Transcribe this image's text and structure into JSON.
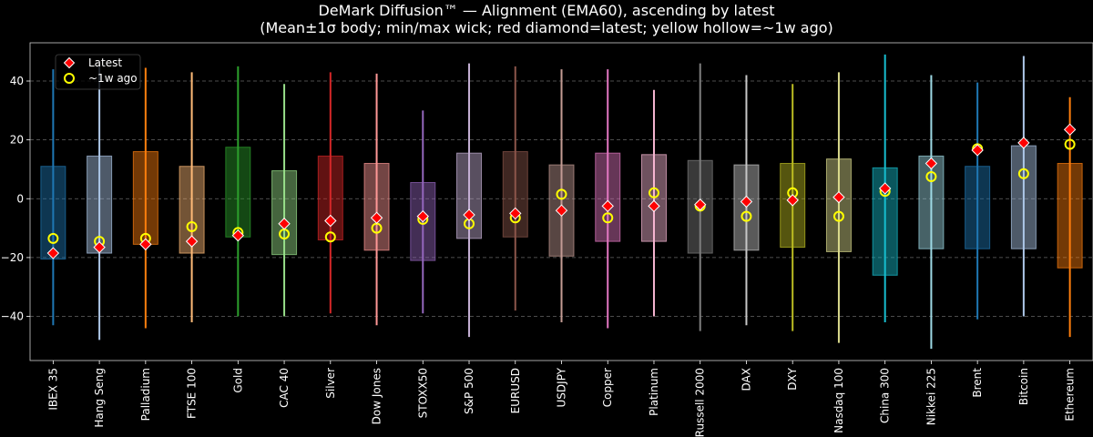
{
  "chart_data": {
    "type": "box",
    "title": "DeMark Diffusion™ — Alignment (EMA60), ascending by latest",
    "subtitle": "(Mean±1σ body; min/max wick; red diamond=latest; yellow hollow=~1w ago)",
    "xlabel": "",
    "ylabel": "",
    "ylim": [
      -55,
      53
    ],
    "yticks": [
      -40,
      -20,
      0,
      20,
      40
    ],
    "grid": "y dashed",
    "legend": {
      "placement": "top-left",
      "entries": [
        {
          "label": "Latest",
          "marker": "red diamond"
        },
        {
          "label": "~1w ago",
          "marker": "yellow hollow circle"
        }
      ]
    },
    "categories": [
      "IBEX 35",
      "Hang Seng",
      "Palladium",
      "FTSE 100",
      "Gold",
      "CAC 40",
      "Silver",
      "Dow Jones",
      "STOXX50",
      "S&P 500",
      "EURUSD",
      "USDJPY",
      "Copper",
      "Platinum",
      "Russell 2000",
      "DAX",
      "DXY",
      "Nasdaq 100",
      "China 300",
      "Nikkei 225",
      "Brent",
      "Bitcoin",
      "Ethereum"
    ],
    "colors": [
      "#1f77b4",
      "#aec7e8",
      "#ff7f0e",
      "#ffbb78",
      "#2ca02c",
      "#98df8a",
      "#d62728",
      "#ff9896",
      "#9467bd",
      "#c5b0d5",
      "#8c564b",
      "#c49c94",
      "#e377c2",
      "#f7b6d2",
      "#7f7f7f",
      "#c7c7c7",
      "#bcbd22",
      "#dbdb8d",
      "#17becf",
      "#9edae5",
      "#1f77b4",
      "#aec7e8",
      "#ff7f0e"
    ],
    "body_low": [
      -20.5,
      -18.5,
      -15.5,
      -18.5,
      -13.0,
      -19.0,
      -14.0,
      -17.5,
      -21.0,
      -13.5,
      -13.0,
      -19.5,
      -14.5,
      -14.5,
      -18.5,
      -17.5,
      -16.5,
      -18.0,
      -26.0,
      -17.0,
      -17.0,
      -17.0,
      -23.5
    ],
    "body_high": [
      11.0,
      14.5,
      16.0,
      11.0,
      17.5,
      9.5,
      14.5,
      12.0,
      5.5,
      15.5,
      16.0,
      11.5,
      15.5,
      15.0,
      13.0,
      11.5,
      12.0,
      13.5,
      10.5,
      14.5,
      11.0,
      18.0,
      12.0
    ],
    "min": [
      -43,
      -48,
      -44,
      -42,
      -40,
      -40,
      -39,
      -43,
      -39,
      -47,
      -38,
      -42,
      -44,
      -40,
      -45,
      -43,
      -45,
      -49,
      -42,
      -51,
      -41,
      -40,
      -47
    ],
    "max": [
      44,
      45,
      44.5,
      43,
      45,
      39,
      43,
      42.5,
      30,
      46,
      45,
      44,
      44,
      37,
      46,
      42,
      39,
      43,
      49,
      42,
      39.5,
      48.5,
      34.5
    ],
    "latest": [
      -18.5,
      -16.5,
      -15.5,
      -14.5,
      -12.5,
      -8.5,
      -7.5,
      -6.5,
      -6.0,
      -5.5,
      -5.0,
      -4.0,
      -2.5,
      -2.5,
      -2.0,
      -1.0,
      -0.5,
      0.5,
      3.5,
      12.0,
      16.5,
      19.0,
      23.5
    ],
    "week_ago": [
      -13.5,
      -14.5,
      -13.5,
      -9.5,
      -11.5,
      -12.0,
      -13.0,
      -10.0,
      -7.0,
      -8.5,
      -6.5,
      1.5,
      -6.5,
      2.0,
      -2.5,
      -6.0,
      2.0,
      -6.0,
      2.5,
      7.5,
      17.0,
      8.5,
      18.5
    ]
  }
}
